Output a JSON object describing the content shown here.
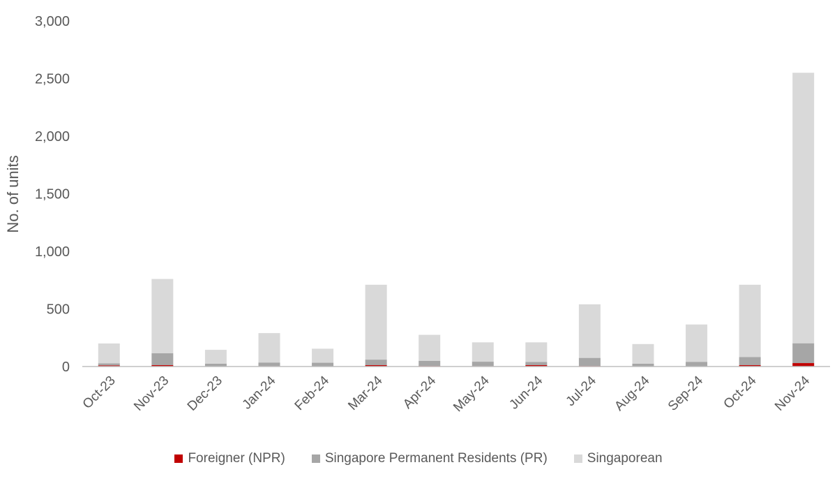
{
  "chart_data": {
    "type": "bar",
    "stacked": true,
    "ylabel": "No. of units",
    "xlabel": "",
    "ylim": [
      0,
      3000
    ],
    "yticks": [
      0,
      500,
      1000,
      1500,
      2000,
      2500,
      3000
    ],
    "ytick_labels": [
      "0",
      "500",
      "1,000",
      "1,500",
      "2,000",
      "2,500",
      "3,000"
    ],
    "categories": [
      "Oct-23",
      "Nov-23",
      "Dec-23",
      "Jan-24",
      "Feb-24",
      "Mar-24",
      "Apr-24",
      "May-24",
      "Jun-24",
      "Jul-24",
      "Aug-24",
      "Sep-24",
      "Oct-24",
      "Nov-24"
    ],
    "series": [
      {
        "name": "Foreigner (NPR)",
        "color": "#c00000",
        "values": [
          10,
          12,
          3,
          4,
          3,
          12,
          5,
          4,
          12,
          5,
          3,
          3,
          12,
          30
        ]
      },
      {
        "name": "Singapore Permanent Residents (PR)",
        "color": "#a6a6a6",
        "values": [
          18,
          103,
          22,
          31,
          30,
          48,
          45,
          38,
          28,
          70,
          22,
          38,
          70,
          172
        ]
      },
      {
        "name": "Singaporean",
        "color": "#d9d9d9",
        "values": [
          172,
          645,
          120,
          255,
          122,
          650,
          225,
          168,
          170,
          465,
          170,
          324,
          628,
          2348
        ]
      }
    ],
    "grid": false,
    "legend_position": "bottom"
  }
}
